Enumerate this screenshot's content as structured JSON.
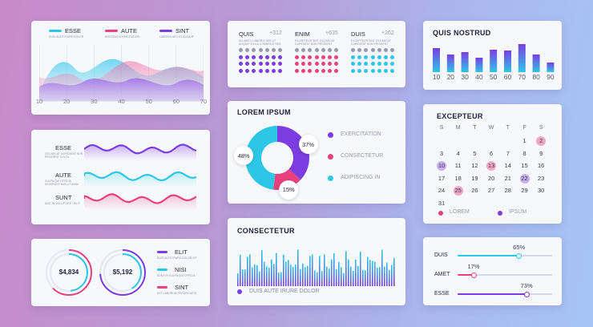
{
  "card_top_left": {
    "legend": [
      {
        "label": "ESSE",
        "sub": "DUIS AUTE IRURE DOLOR",
        "color": "#2ec6e6"
      },
      {
        "label": "AUTE",
        "sub": "NOSTRUD EXERCITATION",
        "color": "#e8417e"
      },
      {
        "label": "SINT",
        "sub": "LABORIS NISI UT ALIQUIP",
        "color": "#7a3de0"
      }
    ],
    "x_ticks": [
      "10",
      "20",
      "30",
      "40",
      "50",
      "60",
      "70"
    ]
  },
  "card_mid_left": {
    "rows": [
      {
        "label": "ESSE",
        "sub": "OCCAECAT CUPIDATAT NON PROIDENT CULPA"
      },
      {
        "label": "AUTE",
        "sub": "CULPA QUI OFFICIA DESERUNT MOLLIT ANIM"
      },
      {
        "label": "SUNT",
        "sub": "SINT IN VOLUPTATE VELIT"
      }
    ]
  },
  "card_bottom_left": {
    "ring1": {
      "value": "$4,834"
    },
    "ring2": {
      "value": "$5,192"
    },
    "legend": [
      {
        "label": "ELIT",
        "sub": "DUIS AUTE IRURE DOLOR SIT",
        "color": "#7a3de0"
      },
      {
        "label": "NISI",
        "sub": "SUNT IN CULPA QUI OFFICIA",
        "color": "#2ec6e6"
      },
      {
        "label": "SINT",
        "sub": "EST LABORUM PERSPICIATIS",
        "color": "#e8417e"
      }
    ]
  },
  "card_dots": {
    "groups": [
      {
        "title": "QUIS",
        "delta": "+312",
        "sub": "ULLAMCO LABORIS NISI UT ALIQUIP EX EA COMMODO SED",
        "color": "#7a3de0"
      },
      {
        "title": "ENIM",
        "delta": "+635",
        "sub": "EXCEPTEUR SINT OCCAECAT CUPIDATAT NON PROIDENT",
        "color": "#e8417e"
      },
      {
        "title": "DUIS",
        "delta": "+262",
        "sub": "EXCEPTEUR SINT OCCAECAT CUPIDATAT NON PROIDENT",
        "color": "#2ec6e6"
      }
    ]
  },
  "card_donut": {
    "title": "LOREM IPSUM",
    "slices": [
      {
        "label": "EXERCITATION",
        "pct": "37%",
        "value": 37,
        "color": "#7a3de0"
      },
      {
        "label": "CONSECTETUR",
        "pct": "15%",
        "value": 15,
        "color": "#e8417e"
      },
      {
        "label": "ADIPISCING IN",
        "pct": "48%",
        "value": 48,
        "color": "#2ec6e6"
      }
    ]
  },
  "card_bars": {
    "title": "CONSECTETUR",
    "legend": "DUIS AUTE IRURE DOLOR",
    "legend_color": "#7a3de0"
  },
  "card_quis": {
    "title": "QUIS NOSTRUD",
    "ticks": [
      "10",
      "20",
      "30",
      "40",
      "50",
      "60",
      "70",
      "80",
      "90"
    ]
  },
  "card_calendar": {
    "title": "EXCEPTEUR",
    "weekdays": [
      "S",
      "M",
      "T",
      "W",
      "T",
      "F",
      "S"
    ],
    "days": [
      "",
      "",
      "",
      "",
      "",
      "1",
      "2",
      "3",
      "4",
      "5",
      "6",
      "7",
      "8",
      "9",
      "10",
      "11",
      "12",
      "13",
      "14",
      "15",
      "16",
      "17",
      "18",
      "19",
      "20",
      "21",
      "22",
      "23",
      "24",
      "25",
      "26",
      "27",
      "28",
      "29",
      "30",
      "31"
    ],
    "highlights": [
      {
        "day": "2",
        "color": "#f3a7c5"
      },
      {
        "day": "10",
        "color": "#c7aef0"
      },
      {
        "day": "13",
        "color": "#f3a7c5"
      },
      {
        "day": "22",
        "color": "#c7aef0"
      },
      {
        "day": "25",
        "color": "#f3a7c5"
      }
    ],
    "legend": [
      {
        "label": "LOREM",
        "color": "#e8417e"
      },
      {
        "label": "IPSUM",
        "color": "#7a3de0"
      }
    ]
  },
  "card_sliders": {
    "sliders": [
      {
        "label": "DUIS",
        "pct_label": "65%",
        "value": 0.65,
        "color": "#2ec6e6"
      },
      {
        "label": "AMET",
        "pct_label": "17%",
        "value": 0.17,
        "color": "#e8417e"
      },
      {
        "label": "ESSE",
        "pct_label": "73%",
        "value": 0.73,
        "color": "#7a3de0"
      }
    ]
  },
  "chart_data": [
    {
      "type": "bar",
      "title": "QUIS NOSTRUD",
      "categories": [
        "10",
        "20",
        "30",
        "40",
        "50",
        "60",
        "70",
        "80",
        "90"
      ],
      "values": [
        30,
        22,
        25,
        18,
        28,
        27,
        35,
        22,
        12
      ],
      "ylim": [
        0,
        40
      ]
    },
    {
      "type": "pie",
      "title": "LOREM IPSUM",
      "categories": [
        "EXERCITATION",
        "CONSECTETUR",
        "ADIPISCING IN"
      ],
      "values": [
        37,
        15,
        48
      ]
    },
    {
      "type": "area",
      "categories": [
        "10",
        "20",
        "30",
        "40",
        "50",
        "60",
        "70"
      ],
      "series": [
        {
          "name": "ESSE",
          "values": [
            40,
            55,
            48,
            60,
            45,
            52,
            40
          ]
        },
        {
          "name": "AUTE",
          "values": [
            55,
            40,
            62,
            45,
            60,
            40,
            50
          ]
        },
        {
          "name": "SINT",
          "values": [
            35,
            50,
            42,
            55,
            38,
            48,
            58
          ]
        }
      ]
    }
  ]
}
